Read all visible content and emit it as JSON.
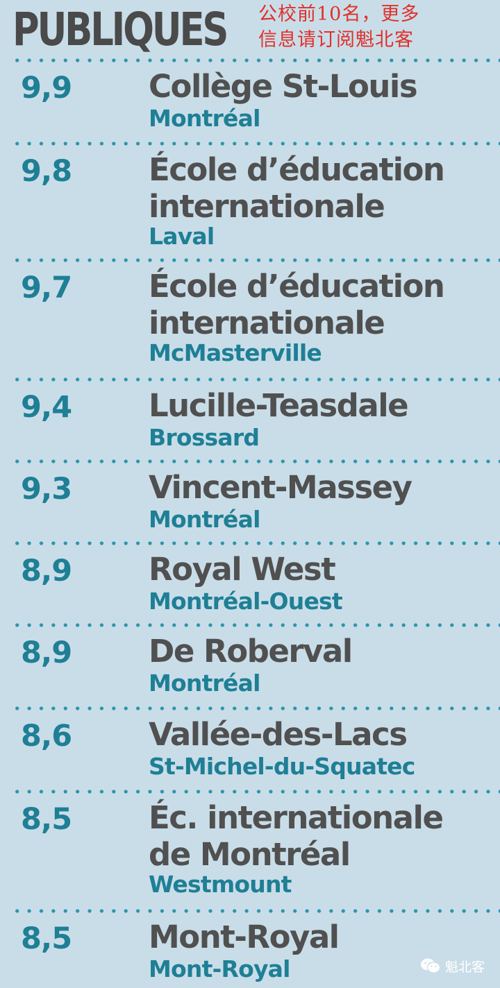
{
  "header": {
    "title": "PUBLIQUES",
    "note_line1": "公校前10名，更多",
    "note_line2": "信息请订阅魁北客"
  },
  "schools": [
    {
      "score": "9,9",
      "name": "Collège St-Louis",
      "city": "Montréal"
    },
    {
      "score": "9,8",
      "name": "École d’éducation\ninternationale",
      "city": "Laval"
    },
    {
      "score": "9,7",
      "name": "École d’éducation\ninternationale",
      "city": "McMasterville"
    },
    {
      "score": "9,4",
      "name": "Lucille-Teasdale",
      "city": "Brossard"
    },
    {
      "score": "9,3",
      "name": "Vincent-Massey",
      "city": "Montréal"
    },
    {
      "score": "8,9",
      "name": "Royal West",
      "city": "Montréal-Ouest"
    },
    {
      "score": "8,9",
      "name": "De Roberval",
      "city": "Montréal"
    },
    {
      "score": "8,6",
      "name": "Vallée-des-Lacs",
      "city": "St-Michel-du-Squatec"
    },
    {
      "score": "8,5",
      "name": "Éc. internationale\nde Montréal",
      "city": "Westmount"
    },
    {
      "score": "8,5",
      "name": "Mont-Royal",
      "city": "Mont-Royal"
    }
  ],
  "watermark": {
    "icon": "wechat-icon",
    "label": "魁北客"
  },
  "colors": {
    "background": "#c9dde8",
    "accent": "#1e7f95",
    "text": "#505050",
    "note": "#e0302a"
  }
}
